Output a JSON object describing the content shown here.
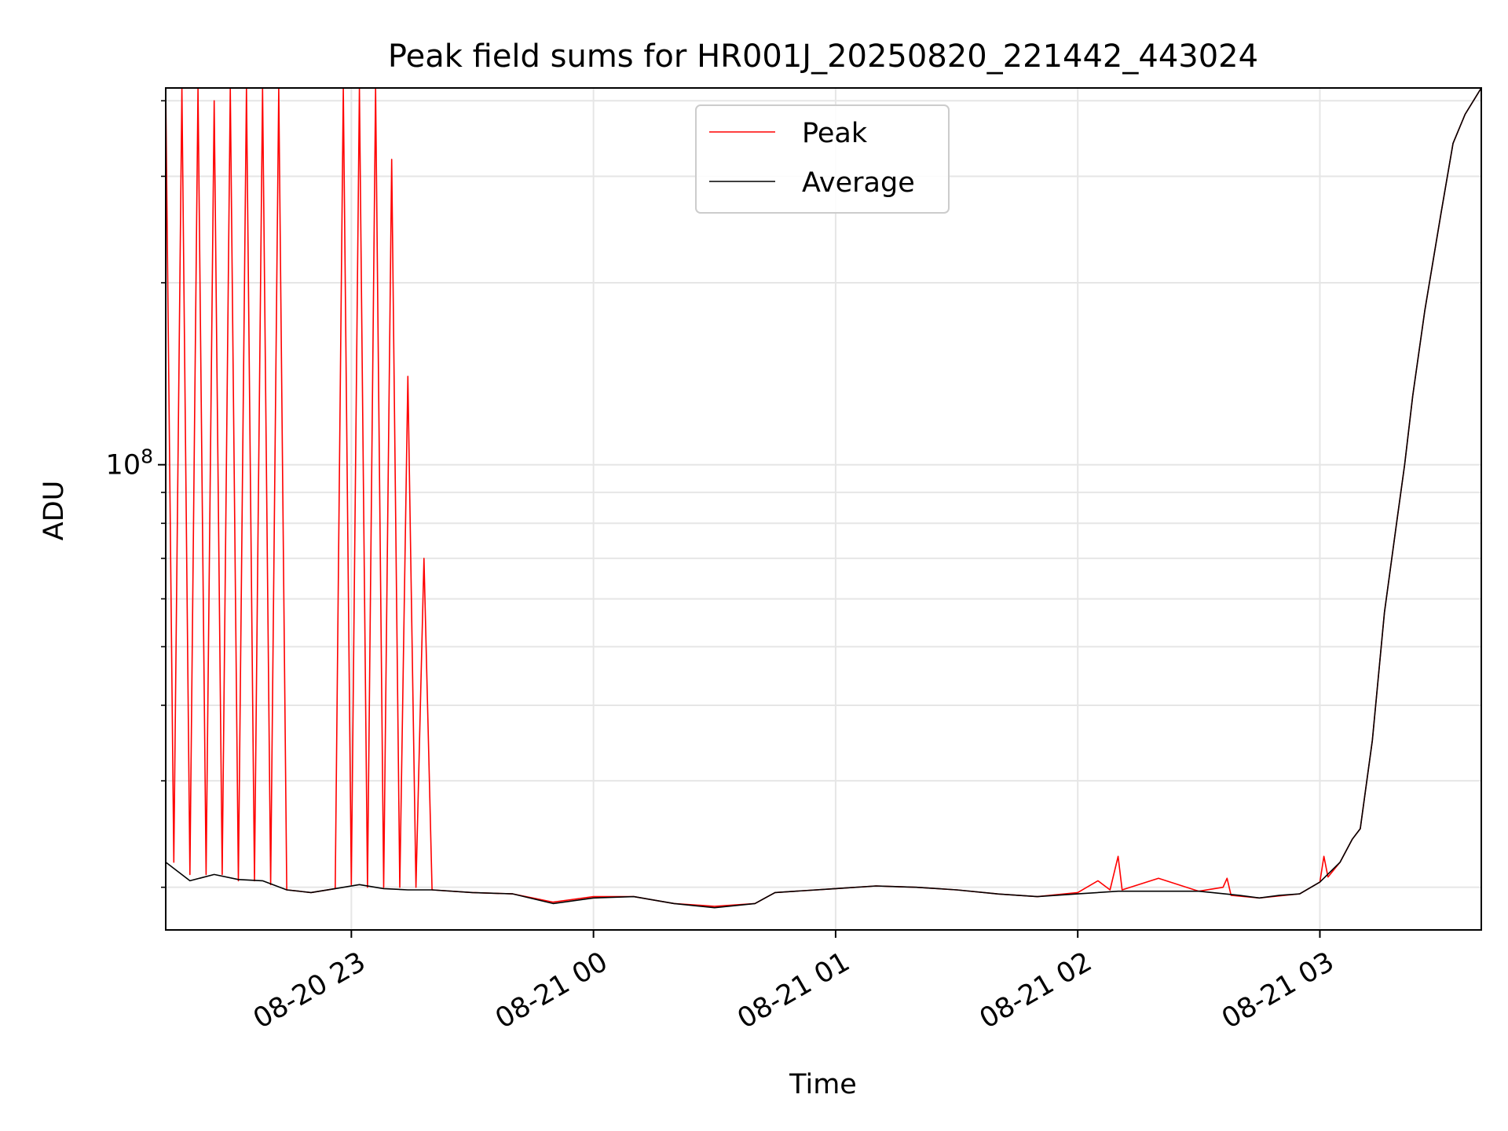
{
  "chart_data": {
    "type": "line",
    "title": "Peak field sums for HR001J_20250820_221442_443024",
    "xlabel": "Time",
    "ylabel": "ADU",
    "yscale": "log",
    "grid": true,
    "legend_position": "top-center",
    "xlim": [
      "2025-08-20 22:14",
      "2025-08-21 03:40"
    ],
    "ylim": [
      17000000,
      420000000
    ],
    "x_ticks": [
      {
        "t": "2025-08-20 23:00",
        "label": "08-20 23"
      },
      {
        "t": "2025-08-21 00:00",
        "label": "08-21 00"
      },
      {
        "t": "2025-08-21 01:00",
        "label": "08-21 01"
      },
      {
        "t": "2025-08-21 02:00",
        "label": "08-21 02"
      },
      {
        "t": "2025-08-21 03:00",
        "label": "08-21 03"
      }
    ],
    "y_ticks": [
      {
        "value": 100000000,
        "base": "10",
        "exp": "8"
      }
    ],
    "y_minor_ticks": [
      20000000,
      30000000,
      40000000,
      50000000,
      60000000,
      70000000,
      80000000,
      90000000,
      200000000,
      300000000,
      400000000
    ],
    "series": [
      {
        "name": "Average",
        "color": "#000000",
        "points": [
          [
            "2025-08-20 22:14",
            22000000
          ],
          [
            "2025-08-20 22:20",
            20500000
          ],
          [
            "2025-08-20 22:26",
            21000000
          ],
          [
            "2025-08-20 22:32",
            20600000
          ],
          [
            "2025-08-20 22:38",
            20500000
          ],
          [
            "2025-08-20 22:44",
            19800000
          ],
          [
            "2025-08-20 22:50",
            19600000
          ],
          [
            "2025-08-20 22:56",
            19900000
          ],
          [
            "2025-08-20 23:02",
            20200000
          ],
          [
            "2025-08-20 23:08",
            19900000
          ],
          [
            "2025-08-20 23:14",
            19800000
          ],
          [
            "2025-08-20 23:20",
            19800000
          ],
          [
            "2025-08-20 23:30",
            19600000
          ],
          [
            "2025-08-20 23:40",
            19500000
          ],
          [
            "2025-08-20 23:50",
            18800000
          ],
          [
            "2025-08-21 00:00",
            19200000
          ],
          [
            "2025-08-21 00:10",
            19300000
          ],
          [
            "2025-08-21 00:20",
            18800000
          ],
          [
            "2025-08-21 00:30",
            18500000
          ],
          [
            "2025-08-21 00:40",
            18800000
          ],
          [
            "2025-08-21 00:45",
            19600000
          ],
          [
            "2025-08-21 01:00",
            19900000
          ],
          [
            "2025-08-21 01:10",
            20100000
          ],
          [
            "2025-08-21 01:20",
            20000000
          ],
          [
            "2025-08-21 01:30",
            19800000
          ],
          [
            "2025-08-21 01:40",
            19500000
          ],
          [
            "2025-08-21 01:50",
            19300000
          ],
          [
            "2025-08-21 02:00",
            19500000
          ],
          [
            "2025-08-21 02:10",
            19700000
          ],
          [
            "2025-08-21 02:20",
            19700000
          ],
          [
            "2025-08-21 02:30",
            19700000
          ],
          [
            "2025-08-21 02:40",
            19400000
          ],
          [
            "2025-08-21 02:45",
            19200000
          ],
          [
            "2025-08-21 02:50",
            19400000
          ],
          [
            "2025-08-21 02:55",
            19500000
          ],
          [
            "2025-08-21 03:00",
            20400000
          ],
          [
            "2025-08-21 03:05",
            22000000
          ],
          [
            "2025-08-21 03:08",
            24000000
          ],
          [
            "2025-08-21 03:10",
            25000000
          ],
          [
            "2025-08-21 03:13",
            35000000
          ],
          [
            "2025-08-21 03:16",
            57000000
          ],
          [
            "2025-08-21 03:19",
            80000000
          ],
          [
            "2025-08-21 03:21",
            100000000
          ],
          [
            "2025-08-21 03:23",
            130000000
          ],
          [
            "2025-08-21 03:26",
            180000000
          ],
          [
            "2025-08-21 03:30",
            260000000
          ],
          [
            "2025-08-21 03:33",
            340000000
          ],
          [
            "2025-08-21 03:36",
            380000000
          ],
          [
            "2025-08-21 03:40",
            420000000
          ]
        ]
      },
      {
        "name": "Peak",
        "color": "#ff0000",
        "points": [
          [
            "2025-08-20 22:14",
            420000000
          ],
          [
            "2025-08-20 22:16",
            22000000
          ],
          [
            "2025-08-20 22:18",
            420000000
          ],
          [
            "2025-08-20 22:20",
            21000000
          ],
          [
            "2025-08-20 22:22",
            420000000
          ],
          [
            "2025-08-20 22:24",
            21000000
          ],
          [
            "2025-08-20 22:26",
            400000000
          ],
          [
            "2025-08-20 22:28",
            21000000
          ],
          [
            "2025-08-20 22:30",
            420000000
          ],
          [
            "2025-08-20 22:32",
            20500000
          ],
          [
            "2025-08-20 22:34",
            420000000
          ],
          [
            "2025-08-20 22:36",
            20500000
          ],
          [
            "2025-08-20 22:38",
            420000000
          ],
          [
            "2025-08-20 22:40",
            20200000
          ],
          [
            "2025-08-20 22:42",
            420000000
          ],
          [
            "2025-08-20 22:44",
            19800000
          ],
          [
            "2025-08-20 22:50",
            19600000
          ],
          [
            "2025-08-20 22:56",
            19900000
          ],
          [
            "2025-08-20 22:58",
            420000000
          ],
          [
            "2025-08-20 23:00",
            20200000
          ],
          [
            "2025-08-20 23:02",
            420000000
          ],
          [
            "2025-08-20 23:04",
            20000000
          ],
          [
            "2025-08-20 23:06",
            420000000
          ],
          [
            "2025-08-20 23:08",
            20000000
          ],
          [
            "2025-08-20 23:10",
            320000000
          ],
          [
            "2025-08-20 23:12",
            20000000
          ],
          [
            "2025-08-20 23:14",
            140000000
          ],
          [
            "2025-08-20 23:16",
            20000000
          ],
          [
            "2025-08-20 23:18",
            70000000
          ],
          [
            "2025-08-20 23:20",
            19800000
          ],
          [
            "2025-08-20 23:30",
            19600000
          ],
          [
            "2025-08-20 23:40",
            19500000
          ],
          [
            "2025-08-20 23:50",
            18900000
          ],
          [
            "2025-08-21 00:00",
            19300000
          ],
          [
            "2025-08-21 00:10",
            19300000
          ],
          [
            "2025-08-21 00:20",
            18800000
          ],
          [
            "2025-08-21 00:30",
            18600000
          ],
          [
            "2025-08-21 00:40",
            18800000
          ],
          [
            "2025-08-21 00:45",
            19600000
          ],
          [
            "2025-08-21 01:00",
            19900000
          ],
          [
            "2025-08-21 01:10",
            20100000
          ],
          [
            "2025-08-21 01:20",
            20000000
          ],
          [
            "2025-08-21 01:30",
            19800000
          ],
          [
            "2025-08-21 01:40",
            19500000
          ],
          [
            "2025-08-21 01:50",
            19300000
          ],
          [
            "2025-08-21 02:00",
            19600000
          ],
          [
            "2025-08-21 02:05",
            20500000
          ],
          [
            "2025-08-21 02:08",
            19800000
          ],
          [
            "2025-08-21 02:10",
            22500000
          ],
          [
            "2025-08-21 02:11",
            19800000
          ],
          [
            "2025-08-21 02:20",
            20700000
          ],
          [
            "2025-08-21 02:30",
            19700000
          ],
          [
            "2025-08-21 02:36",
            20000000
          ],
          [
            "2025-08-21 02:37",
            20700000
          ],
          [
            "2025-08-21 02:38",
            19400000
          ],
          [
            "2025-08-21 02:45",
            19200000
          ],
          [
            "2025-08-21 02:55",
            19500000
          ],
          [
            "2025-08-21 03:00",
            20400000
          ],
          [
            "2025-08-21 03:01",
            22500000
          ],
          [
            "2025-08-21 03:02",
            20800000
          ],
          [
            "2025-08-21 03:05",
            22000000
          ],
          [
            "2025-08-21 03:08",
            24000000
          ],
          [
            "2025-08-21 03:10",
            25000000
          ],
          [
            "2025-08-21 03:13",
            35000000
          ],
          [
            "2025-08-21 03:16",
            57000000
          ],
          [
            "2025-08-21 03:19",
            80000000
          ],
          [
            "2025-08-21 03:21",
            100000000
          ],
          [
            "2025-08-21 03:23",
            130000000
          ],
          [
            "2025-08-21 03:26",
            180000000
          ],
          [
            "2025-08-21 03:30",
            260000000
          ],
          [
            "2025-08-21 03:33",
            340000000
          ],
          [
            "2025-08-21 03:36",
            380000000
          ],
          [
            "2025-08-21 03:40",
            420000000
          ]
        ]
      }
    ],
    "legend": [
      {
        "label": "Peak",
        "color": "#ff0000"
      },
      {
        "label": "Average",
        "color": "#000000"
      }
    ]
  }
}
